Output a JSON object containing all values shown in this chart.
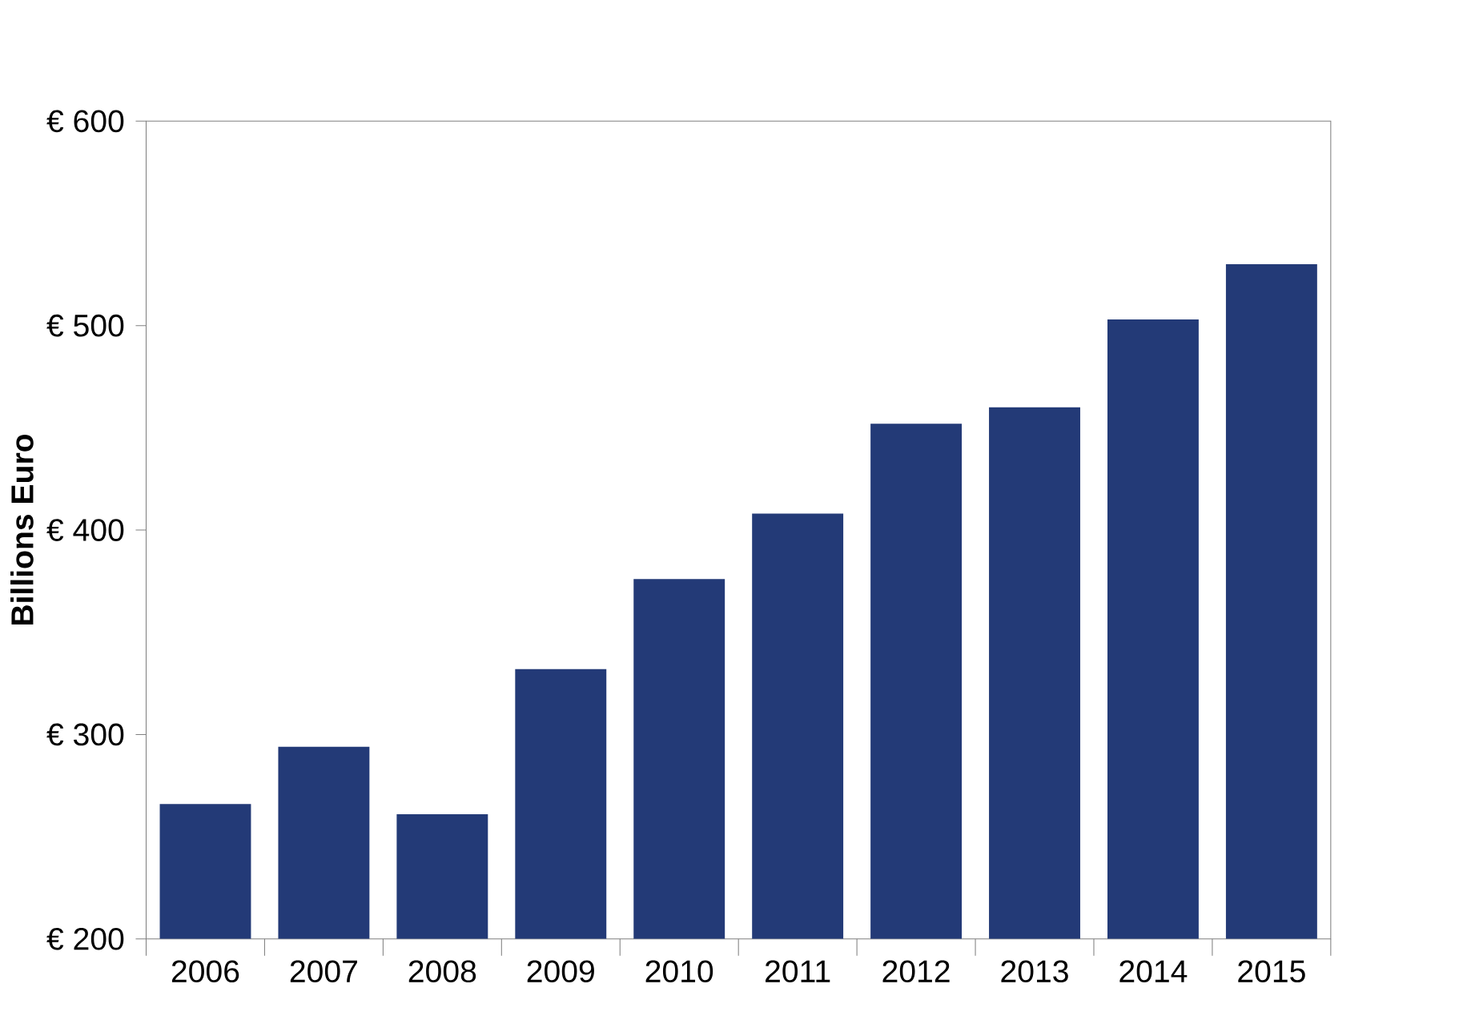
{
  "chart_data": {
    "type": "bar",
    "ylabel": "Billions Euro",
    "categories": [
      "2006",
      "2007",
      "2008",
      "2009",
      "2010",
      "2011",
      "2012",
      "2013",
      "2014",
      "2015"
    ],
    "values": [
      266,
      294,
      261,
      332,
      376,
      408,
      452,
      460,
      503,
      530
    ],
    "color": "#233a77",
    "ylim": [
      200,
      600
    ],
    "yticks": [
      {
        "value": 200,
        "label": "€ 200"
      },
      {
        "value": 300,
        "label": "€ 300"
      },
      {
        "value": 400,
        "label": "€ 400"
      },
      {
        "value": 500,
        "label": "€ 500"
      },
      {
        "value": 600,
        "label": "€ 600"
      }
    ]
  }
}
